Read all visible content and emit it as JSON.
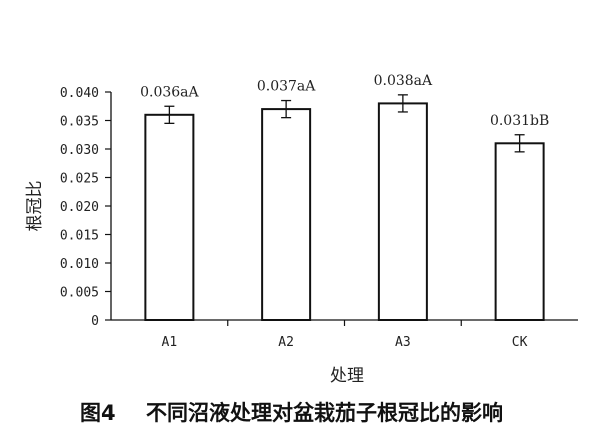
{
  "chart_data": {
    "type": "bar",
    "categories": [
      "A1",
      "A2",
      "A3",
      "CK"
    ],
    "values": [
      0.036,
      0.037,
      0.038,
      0.031
    ],
    "errors": [
      0.0015,
      0.0015,
      0.0015,
      0.0015
    ],
    "data_labels": [
      "0.036aA",
      "0.037aA",
      "0.038aA",
      "0.031bB"
    ],
    "xlabel": "处理",
    "ylabel": "根冠比",
    "ylim": [
      0,
      0.04
    ],
    "yticks": [
      0,
      0.005,
      0.01,
      0.015,
      0.02,
      0.025,
      0.03,
      0.035,
      0.04
    ],
    "ytick_labels": [
      "0",
      "0.005",
      "0.010",
      "0.015",
      "0.020",
      "0.025",
      "0.030",
      "0.035",
      "0.040"
    ],
    "grid": false,
    "bar_fill": "#ffffff",
    "bar_stroke": "#111111"
  },
  "caption": {
    "number": "图4",
    "text": "不同沼液处理对盆栽茄子根冠比的影响"
  }
}
